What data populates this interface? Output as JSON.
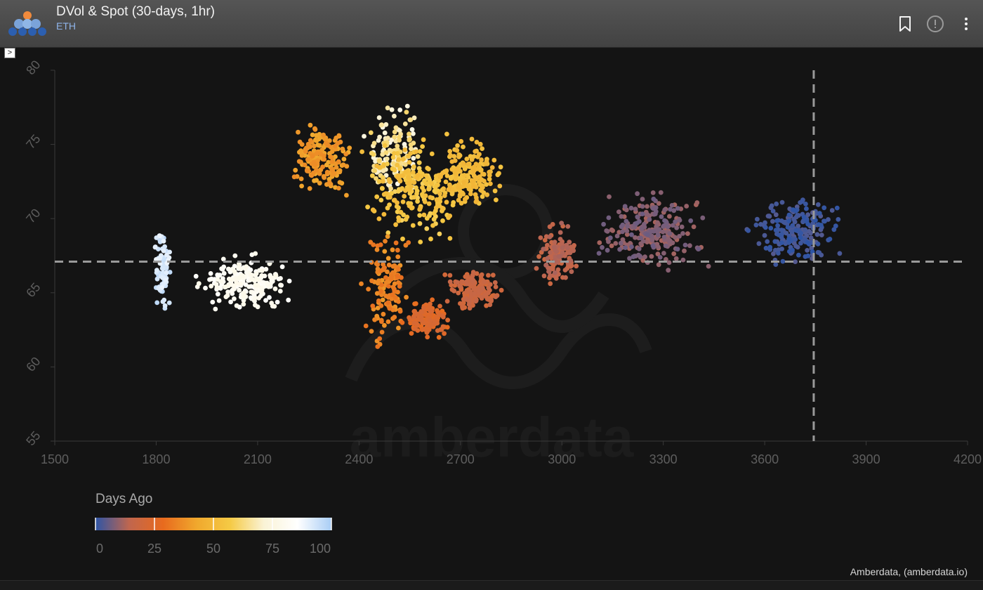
{
  "header": {
    "title": "DVol & Spot (30-days, 1hr)",
    "subtitle": "ETH",
    "icons": [
      "amberdata-logo",
      "bookmark-icon",
      "info-icon",
      "more-vert-icon"
    ]
  },
  "collapse_toggle": {
    "label": ">"
  },
  "watermark": "amberdata",
  "credit": "Amberdata, (amberdata.io)",
  "chart_data": {
    "type": "scatter",
    "title": "",
    "xlabel": "",
    "ylabel": "",
    "xlim": [
      1500,
      4200
    ],
    "ylim": [
      55,
      80
    ],
    "x_ticks": [
      "1500",
      "1800",
      "2100",
      "2400",
      "2700",
      "3000",
      "3300",
      "3600",
      "3900",
      "4200"
    ],
    "y_ticks": [
      "55",
      "60",
      "65",
      "70",
      "75",
      "80"
    ],
    "grid": false,
    "crosshair": {
      "x": 3745,
      "y": 67.1
    },
    "colorbar": {
      "title": "Days Ago",
      "ticks": [
        "0",
        "25",
        "50",
        "75",
        "100"
      ],
      "range": [
        0,
        100
      ],
      "colors": [
        "#2e55a6",
        "#c0664e",
        "#e86a1e",
        "#f0a82d",
        "#f5ca45",
        "#faf3d6",
        "#ffffff",
        "#a9cdf5"
      ],
      "position": "bottom-left"
    },
    "clusters": [
      {
        "x": [
          1790,
          1850
        ],
        "y": [
          63,
          70
        ],
        "days_ago": [
          88,
          98
        ]
      },
      {
        "x": [
          1900,
          2230
        ],
        "y": [
          63.5,
          68
        ],
        "days_ago": [
          78,
          85
        ]
      },
      {
        "x": [
          2160,
          2400
        ],
        "y": [
          71,
          77
        ],
        "days_ago": [
          36,
          45
        ]
      },
      {
        "x": [
          2400,
          2600
        ],
        "y": [
          71,
          78
        ],
        "days_ago": [
          60,
          78
        ]
      },
      {
        "x": [
          2380,
          2740
        ],
        "y": [
          68,
          76
        ],
        "days_ago": [
          50,
          60
        ]
      },
      {
        "x": [
          2600,
          2850
        ],
        "y": [
          70,
          76
        ],
        "days_ago": [
          48,
          55
        ]
      },
      {
        "x": [
          2400,
          2560
        ],
        "y": [
          60.5,
          70
        ],
        "days_ago": [
          30,
          40
        ]
      },
      {
        "x": [
          2520,
          2680
        ],
        "y": [
          61.5,
          65
        ],
        "days_ago": [
          22,
          30
        ]
      },
      {
        "x": [
          2640,
          2840
        ],
        "y": [
          63.5,
          67
        ],
        "days_ago": [
          16,
          22
        ]
      },
      {
        "x": [
          2920,
          3060
        ],
        "y": [
          65,
          70
        ],
        "days_ago": [
          12,
          18
        ]
      },
      {
        "x": [
          3060,
          3460
        ],
        "y": [
          66,
          72.5
        ],
        "days_ago": [
          6,
          12
        ]
      },
      {
        "x": [
          3540,
          3840
        ],
        "y": [
          66.5,
          72
        ],
        "days_ago": [
          0,
          4
        ]
      }
    ]
  }
}
